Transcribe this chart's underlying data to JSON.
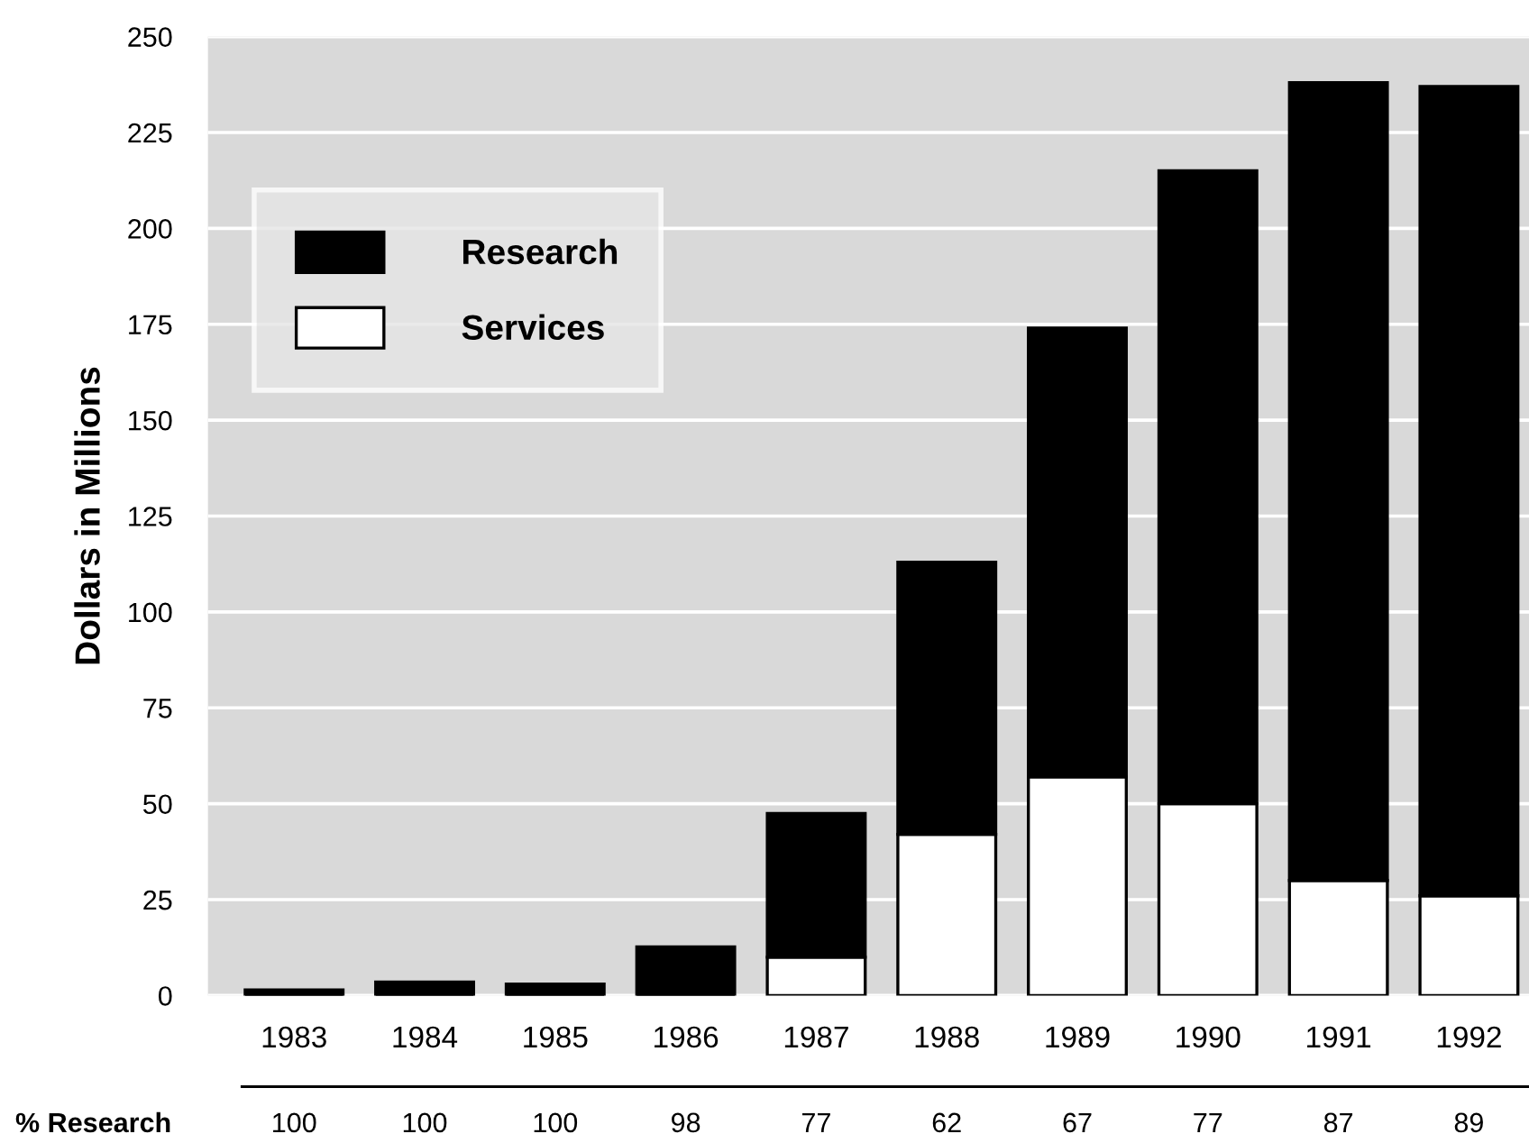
{
  "chart_data": {
    "type": "bar",
    "stacked": true,
    "ylabel": "Dollars in Millions",
    "categories": [
      "1983",
      "1984",
      "1985",
      "1986",
      "1987",
      "1988",
      "1989",
      "1990",
      "1991",
      "1992"
    ],
    "series": [
      {
        "name": "Services",
        "color": "#ffffff",
        "values": [
          0,
          0,
          0,
          null,
          10,
          42,
          57,
          50,
          30,
          26
        ]
      },
      {
        "name": "Research",
        "color": "#000000",
        "values": [
          1.5,
          3.5,
          3,
          12.7,
          37.5,
          71,
          117,
          165,
          208,
          211
        ]
      }
    ],
    "ylim": [
      0,
      250
    ],
    "yticks": [
      0,
      25,
      50,
      75,
      100,
      125,
      150,
      175,
      200,
      225,
      250
    ],
    "grid": "y",
    "legend": "top left",
    "annotations": [
      "% Research",
      "100",
      "100",
      "100",
      "98",
      "77",
      "62",
      "67",
      "77",
      "87",
      "89"
    ]
  }
}
